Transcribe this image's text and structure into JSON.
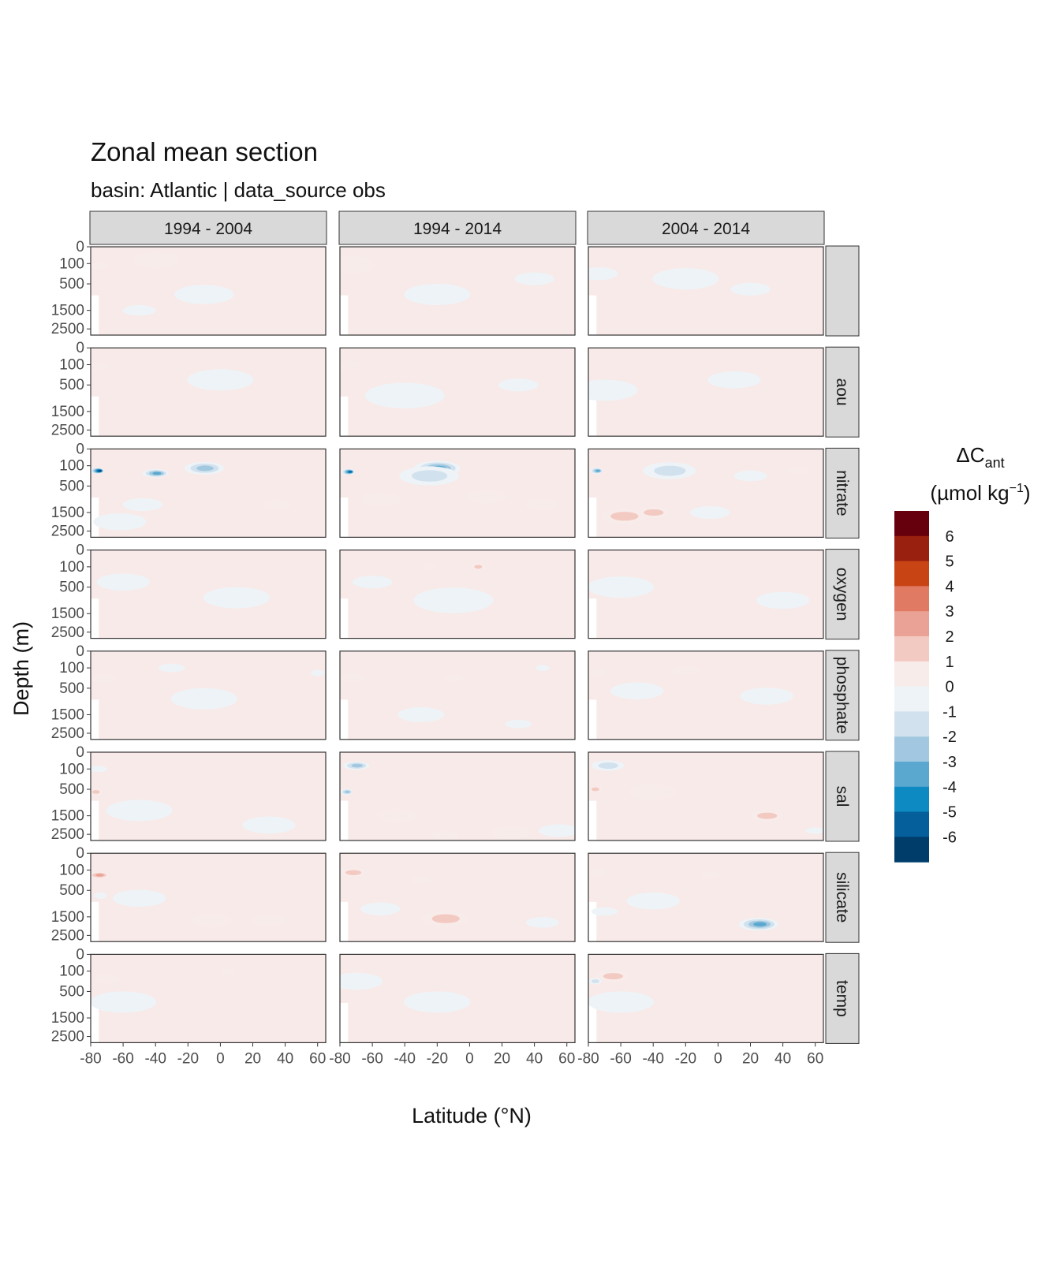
{
  "chart_data": {
    "type": "heatmap",
    "title": "Zonal mean section",
    "subtitle": "basin: Atlantic | data_source obs",
    "xlabel": "Latitude (°N)",
    "ylabel": "Depth (m)",
    "xlim": [
      -80,
      65
    ],
    "x_ticks": [
      "-80",
      "-60",
      "-40",
      "-20",
      "0",
      "20",
      "40",
      "60"
    ],
    "x_tick_values": [
      -80,
      -60,
      -40,
      -20,
      0,
      20,
      40,
      60
    ],
    "y_ticks": [
      "0",
      "100",
      "500",
      "1500",
      "2500"
    ],
    "y_tick_values": [
      0,
      100,
      500,
      1500,
      2500
    ],
    "y_reversed": true,
    "column_facets": [
      "1994 - 2004",
      "1994 - 2014",
      "2004 - 2014"
    ],
    "row_facets": [
      "",
      "aou",
      "nitrate",
      "oxygen",
      "phosphate",
      "sal",
      "silicate",
      "temp"
    ],
    "legend": {
      "title": "ΔCant (µmol kg⁻¹)",
      "title_main": "ΔC",
      "title_sub": "ant",
      "title_units": "(µmol kg",
      "title_units_sup": "−1",
      "title_units_close": ")",
      "labels": [
        "6",
        "5",
        "4",
        "3",
        "2",
        "1",
        "0",
        "-1",
        "-2",
        "-3",
        "-4",
        "-5",
        "-6"
      ],
      "colors": [
        "#67000d",
        "#99200f",
        "#c84414",
        "#e07a63",
        "#eba296",
        "#f3cac2",
        "#f8ecea",
        "#eef3f7",
        "#d1e2ee",
        "#a1c8e0",
        "#5aa7cf",
        "#0e8ac2",
        "#045f9a",
        "#003d6b"
      ]
    },
    "colors": {
      "positive_bg": "#f8eae8",
      "negative_bg": "#eef3f7",
      "strip_bg": "#d9d9d9",
      "panel_border": "#333333"
    },
    "panels": [
      [
        {
          "base": 0.4,
          "features": [
            [
              -76,
              150,
              3,
              0.8
            ],
            [
              -40,
              80,
              7,
              0.3
            ],
            [
              -10,
              900,
              9,
              -0.6
            ],
            [
              -50,
              1500,
              5,
              -0.3
            ]
          ]
        },
        {
          "base": 0.4,
          "features": [
            [
              -75,
              120,
              8,
              0.7
            ],
            [
              -20,
              900,
              10,
              -0.4
            ],
            [
              40,
              400,
              6,
              -0.3
            ]
          ]
        },
        {
          "base": 0.35,
          "features": [
            [
              -74,
              300,
              6,
              -0.6
            ],
            [
              -20,
              400,
              10,
              -0.5
            ],
            [
              20,
              700,
              6,
              -0.3
            ]
          ]
        }
      ],
      [
        {
          "base": 0.35,
          "features": [
            [
              -76,
              150,
              3,
              0.7
            ],
            [
              0,
              400,
              10,
              -0.4
            ]
          ]
        },
        {
          "base": 0.35,
          "features": [
            [
              -75,
              120,
              4,
              0.8
            ],
            [
              -40,
              900,
              12,
              -0.6
            ],
            [
              30,
              500,
              6,
              -0.3
            ]
          ]
        },
        {
          "base": 0.35,
          "features": [
            [
              -70,
              700,
              10,
              -0.4
            ],
            [
              10,
              400,
              8,
              -0.4
            ]
          ]
        }
      ],
      [
        {
          "base": 0.2,
          "features": [
            [
              -76,
              200,
              2,
              -6.5
            ],
            [
              -40,
              250,
              4,
              -3.5
            ],
            [
              -10,
              150,
              6,
              -2.5
            ],
            [
              -62,
              2000,
              8,
              -1.4
            ],
            [
              35,
              1200,
              4,
              1.2
            ],
            [
              -48,
              1200,
              6,
              -0.6
            ]
          ]
        },
        {
          "base": 0.2,
          "features": [
            [
              -75,
              220,
              2,
              -6.2
            ],
            [
              -20,
              150,
              7,
              -3.5
            ],
            [
              -25,
              300,
              9,
              -1.8
            ],
            [
              -55,
              1000,
              6,
              1.2
            ],
            [
              45,
              1200,
              5,
              1.3
            ],
            [
              10,
              900,
              6,
              0.8
            ]
          ]
        },
        {
          "base": 0.2,
          "features": [
            [
              -75,
              200,
              2,
              -4.0
            ],
            [
              -30,
              200,
              8,
              -2.3
            ],
            [
              -58,
              1700,
              7,
              2.4
            ],
            [
              -40,
              1500,
              5,
              1.5
            ],
            [
              20,
              300,
              5,
              -1.0
            ],
            [
              50,
              200,
              3,
              1.0
            ],
            [
              -5,
              1500,
              6,
              -0.8
            ]
          ]
        }
      ],
      [
        {
          "base": 0.4,
          "features": [
            [
              -60,
              400,
              8,
              -0.4
            ],
            [
              10,
              900,
              10,
              -0.3
            ]
          ]
        },
        {
          "base": 0.4,
          "features": [
            [
              -60,
              400,
              6,
              -0.5
            ],
            [
              5,
              100,
              2,
              1.5
            ],
            [
              -25,
              100,
              2,
              1.2
            ],
            [
              -10,
              1000,
              12,
              -0.3
            ]
          ]
        },
        {
          "base": 0.4,
          "features": [
            [
              -60,
              500,
              10,
              -0.5
            ],
            [
              40,
              1000,
              8,
              -0.3
            ]
          ]
        }
      ],
      [
        {
          "base": 0.35,
          "features": [
            [
              -73,
              300,
              4,
              1.2
            ],
            [
              -30,
              100,
              4,
              -1.0
            ],
            [
              -10,
              900,
              10,
              -0.4
            ],
            [
              60,
              200,
              2,
              -1.0
            ]
          ]
        },
        {
          "base": 0.35,
          "features": [
            [
              -73,
              300,
              4,
              1.2
            ],
            [
              -10,
              300,
              3,
              1.2
            ],
            [
              -30,
              1500,
              7,
              -0.5
            ],
            [
              30,
              2000,
              4,
              -1.2
            ],
            [
              45,
              100,
              2,
              -1.2
            ]
          ]
        },
        {
          "base": 0.35,
          "features": [
            [
              -75,
              200,
              3,
              1.2
            ],
            [
              -20,
              150,
              4,
              1.2
            ],
            [
              -50,
              600,
              8,
              -0.4
            ],
            [
              30,
              800,
              8,
              -0.3
            ]
          ]
        }
      ],
      [
        {
          "base": 0.2,
          "features": [
            [
              -76,
              100,
              3,
              -0.8
            ],
            [
              -77,
              600,
              2,
              2.0
            ],
            [
              -50,
              1300,
              10,
              -0.5
            ],
            [
              30,
              2000,
              8,
              -0.4
            ]
          ]
        },
        {
          "base": 0.3,
          "features": [
            [
              -70,
              80,
              4,
              -2.6
            ],
            [
              -76,
              600,
              2,
              -2.5
            ],
            [
              -15,
              2600,
              4,
              1.3
            ],
            [
              25,
              2400,
              6,
              1.3
            ],
            [
              55,
              2300,
              6,
              -1.4
            ],
            [
              -45,
              1500,
              6,
              0.8
            ]
          ]
        },
        {
          "base": 0.3,
          "features": [
            [
              -68,
              80,
              5,
              -2.0
            ],
            [
              -76,
              500,
              2,
              2.0
            ],
            [
              30,
              1500,
              5,
              1.6
            ],
            [
              60,
              2300,
              3,
              -1.2
            ],
            [
              -40,
              600,
              7,
              0.6
            ]
          ]
        }
      ],
      [
        {
          "base": 0.3,
          "features": [
            [
              -75,
              200,
              3,
              2.5
            ],
            [
              -74,
              700,
              2,
              -1.0
            ],
            [
              -5,
              1700,
              6,
              1.2
            ],
            [
              30,
              1700,
              5,
              1.3
            ],
            [
              -50,
              800,
              8,
              -0.4
            ]
          ]
        },
        {
          "base": 0.3,
          "features": [
            [
              -72,
              150,
              4,
              1.8
            ],
            [
              -15,
              1600,
              7,
              1.5
            ],
            [
              -30,
              300,
              3,
              1.0
            ],
            [
              45,
              1800,
              5,
              -1.3
            ],
            [
              -55,
              1200,
              6,
              -0.5
            ]
          ]
        },
        {
          "base": 0.3,
          "features": [
            [
              -75,
              150,
              3,
              1.2
            ],
            [
              -5,
              200,
              3,
              1.2
            ],
            [
              -70,
              1300,
              4,
              -1.2
            ],
            [
              25,
              1900,
              6,
              -3.5
            ],
            [
              -40,
              900,
              8,
              -0.5
            ]
          ]
        }
      ],
      [
        {
          "base": 0.4,
          "features": [
            [
              -70,
              250,
              4,
              1.3
            ],
            [
              -60,
              900,
              10,
              -0.4
            ],
            [
              5,
              100,
              2,
              1.0
            ]
          ]
        },
        {
          "base": 0.4,
          "features": [
            [
              -70,
              300,
              8,
              -0.5
            ],
            [
              -20,
              900,
              10,
              -0.4
            ]
          ]
        },
        {
          "base": 0.35,
          "features": [
            [
              -76,
              300,
              2,
              -2.0
            ],
            [
              -65,
              200,
              5,
              1.5
            ],
            [
              -60,
              900,
              10,
              -0.5
            ]
          ]
        }
      ]
    ]
  }
}
